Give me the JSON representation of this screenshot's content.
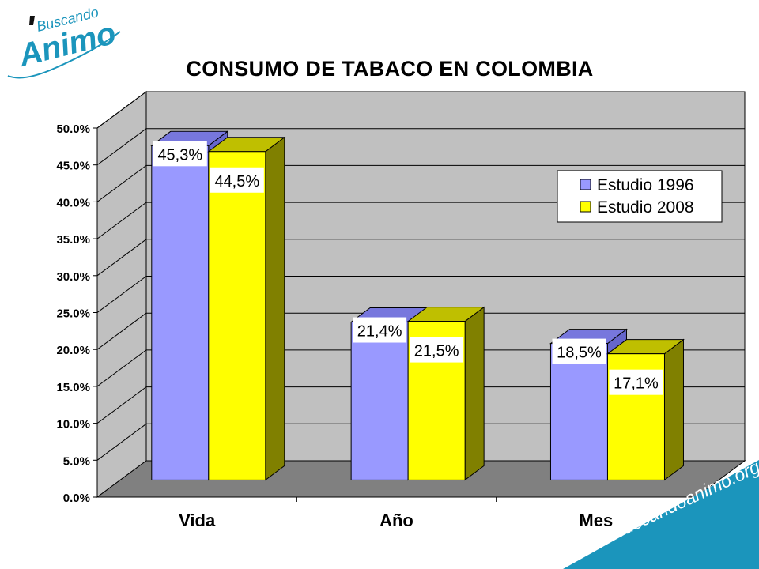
{
  "logo": {
    "word_top": "Buscando",
    "word_bottom": "Animo"
  },
  "chart_data": {
    "type": "bar",
    "title": "CONSUMO DE TABACO EN COLOMBIA",
    "categories": [
      "Vida",
      "Año",
      "Mes"
    ],
    "series": [
      {
        "name": "Estudio 1996",
        "values": [
          45.3,
          21.4,
          18.5
        ],
        "labels": [
          "45,3%",
          "21,4%",
          "18,5%"
        ],
        "color": "#9999FF"
      },
      {
        "name": "Estudio 2008",
        "values": [
          44.5,
          21.5,
          17.1
        ],
        "labels": [
          "44,5%",
          "21,5%",
          "17,1%"
        ],
        "color": "#FFFF00"
      }
    ],
    "yticks": [
      "0.0%",
      "5.0%",
      "10.0%",
      "15.0%",
      "20.0%",
      "25.0%",
      "30.0%",
      "35.0%",
      "40.0%",
      "45.0%",
      "50.0%"
    ],
    "ylim": [
      0,
      50
    ],
    "grid": true,
    "legend_position": "right"
  },
  "watermark": {
    "url": "www.buscandoanimo.org"
  },
  "colors": {
    "wall": "#C0C0C0",
    "floor": "#808080",
    "band": "#1B95BC"
  }
}
